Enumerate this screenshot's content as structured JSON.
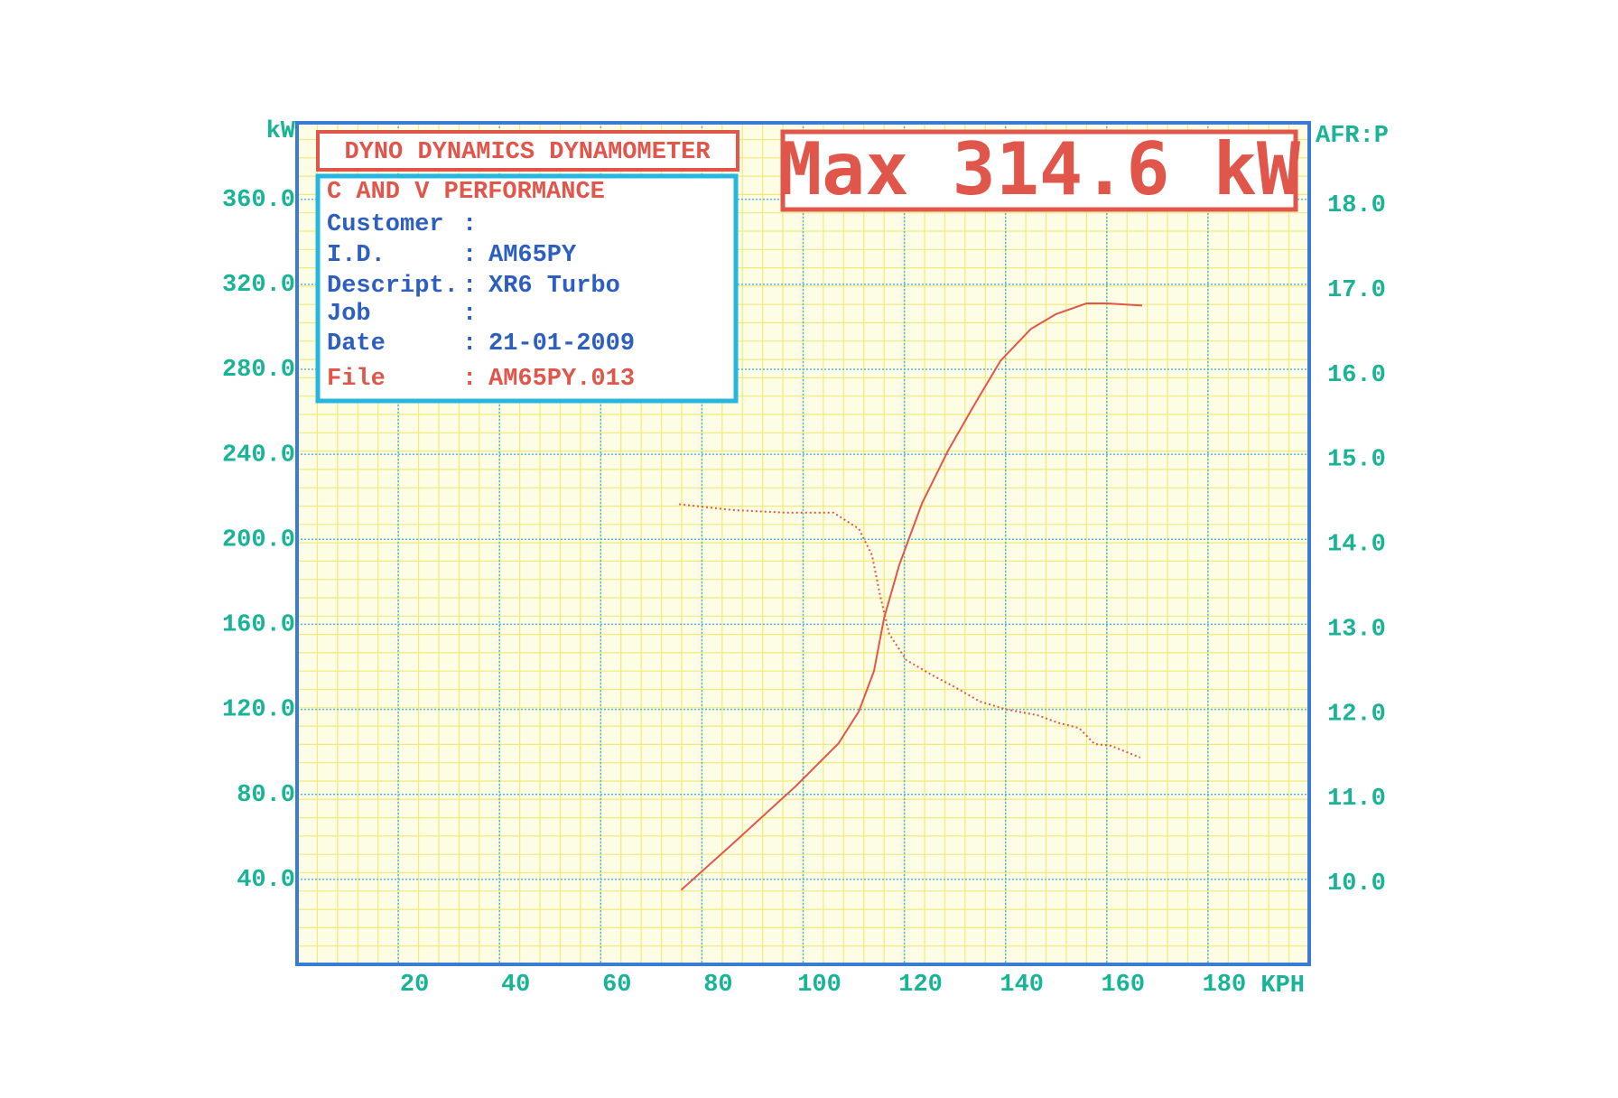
{
  "chart_data": {
    "type": "line",
    "title": "DYNO DYNAMICS DYNAMOMETER",
    "annotation": "Max 314.6 kW",
    "info": {
      "heading": "C AND V PERFORMANCE",
      "separator": ":",
      "rows": [
        {
          "label": "Customer"
        },
        {
          "label": "I.D.",
          "value": "AM65PY"
        },
        {
          "label": "Descript.",
          "value": "XR6 Turbo"
        },
        {
          "label": "Job"
        },
        {
          "label": "Date",
          "value": "21-01-2009"
        },
        {
          "label": "File",
          "value": "AM65PY.013"
        }
      ]
    },
    "xlabel": "KPH",
    "ylabel": "kW",
    "y2label": "AFR:P",
    "xlim": [
      0,
      200
    ],
    "xticks": [
      20,
      40,
      60,
      80,
      100,
      120,
      140,
      160,
      180
    ],
    "ylim": [
      0,
      396
    ],
    "yticks": [
      {
        "value": 40,
        "label": "40.0"
      },
      {
        "value": 80,
        "label": "80.0"
      },
      {
        "value": 120,
        "label": "120.0"
      },
      {
        "value": 160,
        "label": "160.0"
      },
      {
        "value": 200,
        "label": "200.0"
      },
      {
        "value": 240,
        "label": "240.0"
      },
      {
        "value": 280,
        "label": "280.0"
      },
      {
        "value": 320,
        "label": "320.0"
      },
      {
        "value": 360,
        "label": "360.0"
      }
    ],
    "y2lim": [
      9.04,
      18.97
    ],
    "y2ticks": [
      {
        "value": 10,
        "label": "10.0"
      },
      {
        "value": 11,
        "label": "11.0"
      },
      {
        "value": 12,
        "label": "12.0"
      },
      {
        "value": 13,
        "label": "13.0"
      },
      {
        "value": 14,
        "label": "14.0"
      },
      {
        "value": 15,
        "label": "15.0"
      },
      {
        "value": 16,
        "label": "16.0"
      },
      {
        "value": 17,
        "label": "17.0"
      },
      {
        "value": 18,
        "label": "18.0"
      }
    ],
    "grid": true,
    "series": [
      {
        "color": "#e0564a",
        "style": "solid",
        "x": [
          75.9,
          86.2,
          98.6,
          107,
          111,
          114,
          116,
          119,
          123.5,
          128.7,
          134,
          139,
          145,
          150,
          156,
          160,
          167
        ],
        "values": [
          35,
          57,
          84,
          104,
          119,
          138,
          163,
          188,
          217,
          242,
          264,
          284,
          299,
          306,
          311,
          311,
          310
        ]
      },
      {
        "color": "#e0564a",
        "style": "dotted",
        "axis": "y2",
        "x": [
          75.5,
          86.2,
          96.6,
          106,
          111,
          113.6,
          115.3,
          117,
          120.4,
          125.6,
          129.7,
          135,
          140,
          146.3,
          150.4,
          154.5,
          157.6,
          160.8,
          166.6
        ],
        "values": [
          14.47,
          14.4,
          14.37,
          14.37,
          14.18,
          13.87,
          13.37,
          12.94,
          12.63,
          12.45,
          12.32,
          12.14,
          12.05,
          11.98,
          11.89,
          11.83,
          11.64,
          11.62,
          11.48
        ]
      }
    ]
  }
}
